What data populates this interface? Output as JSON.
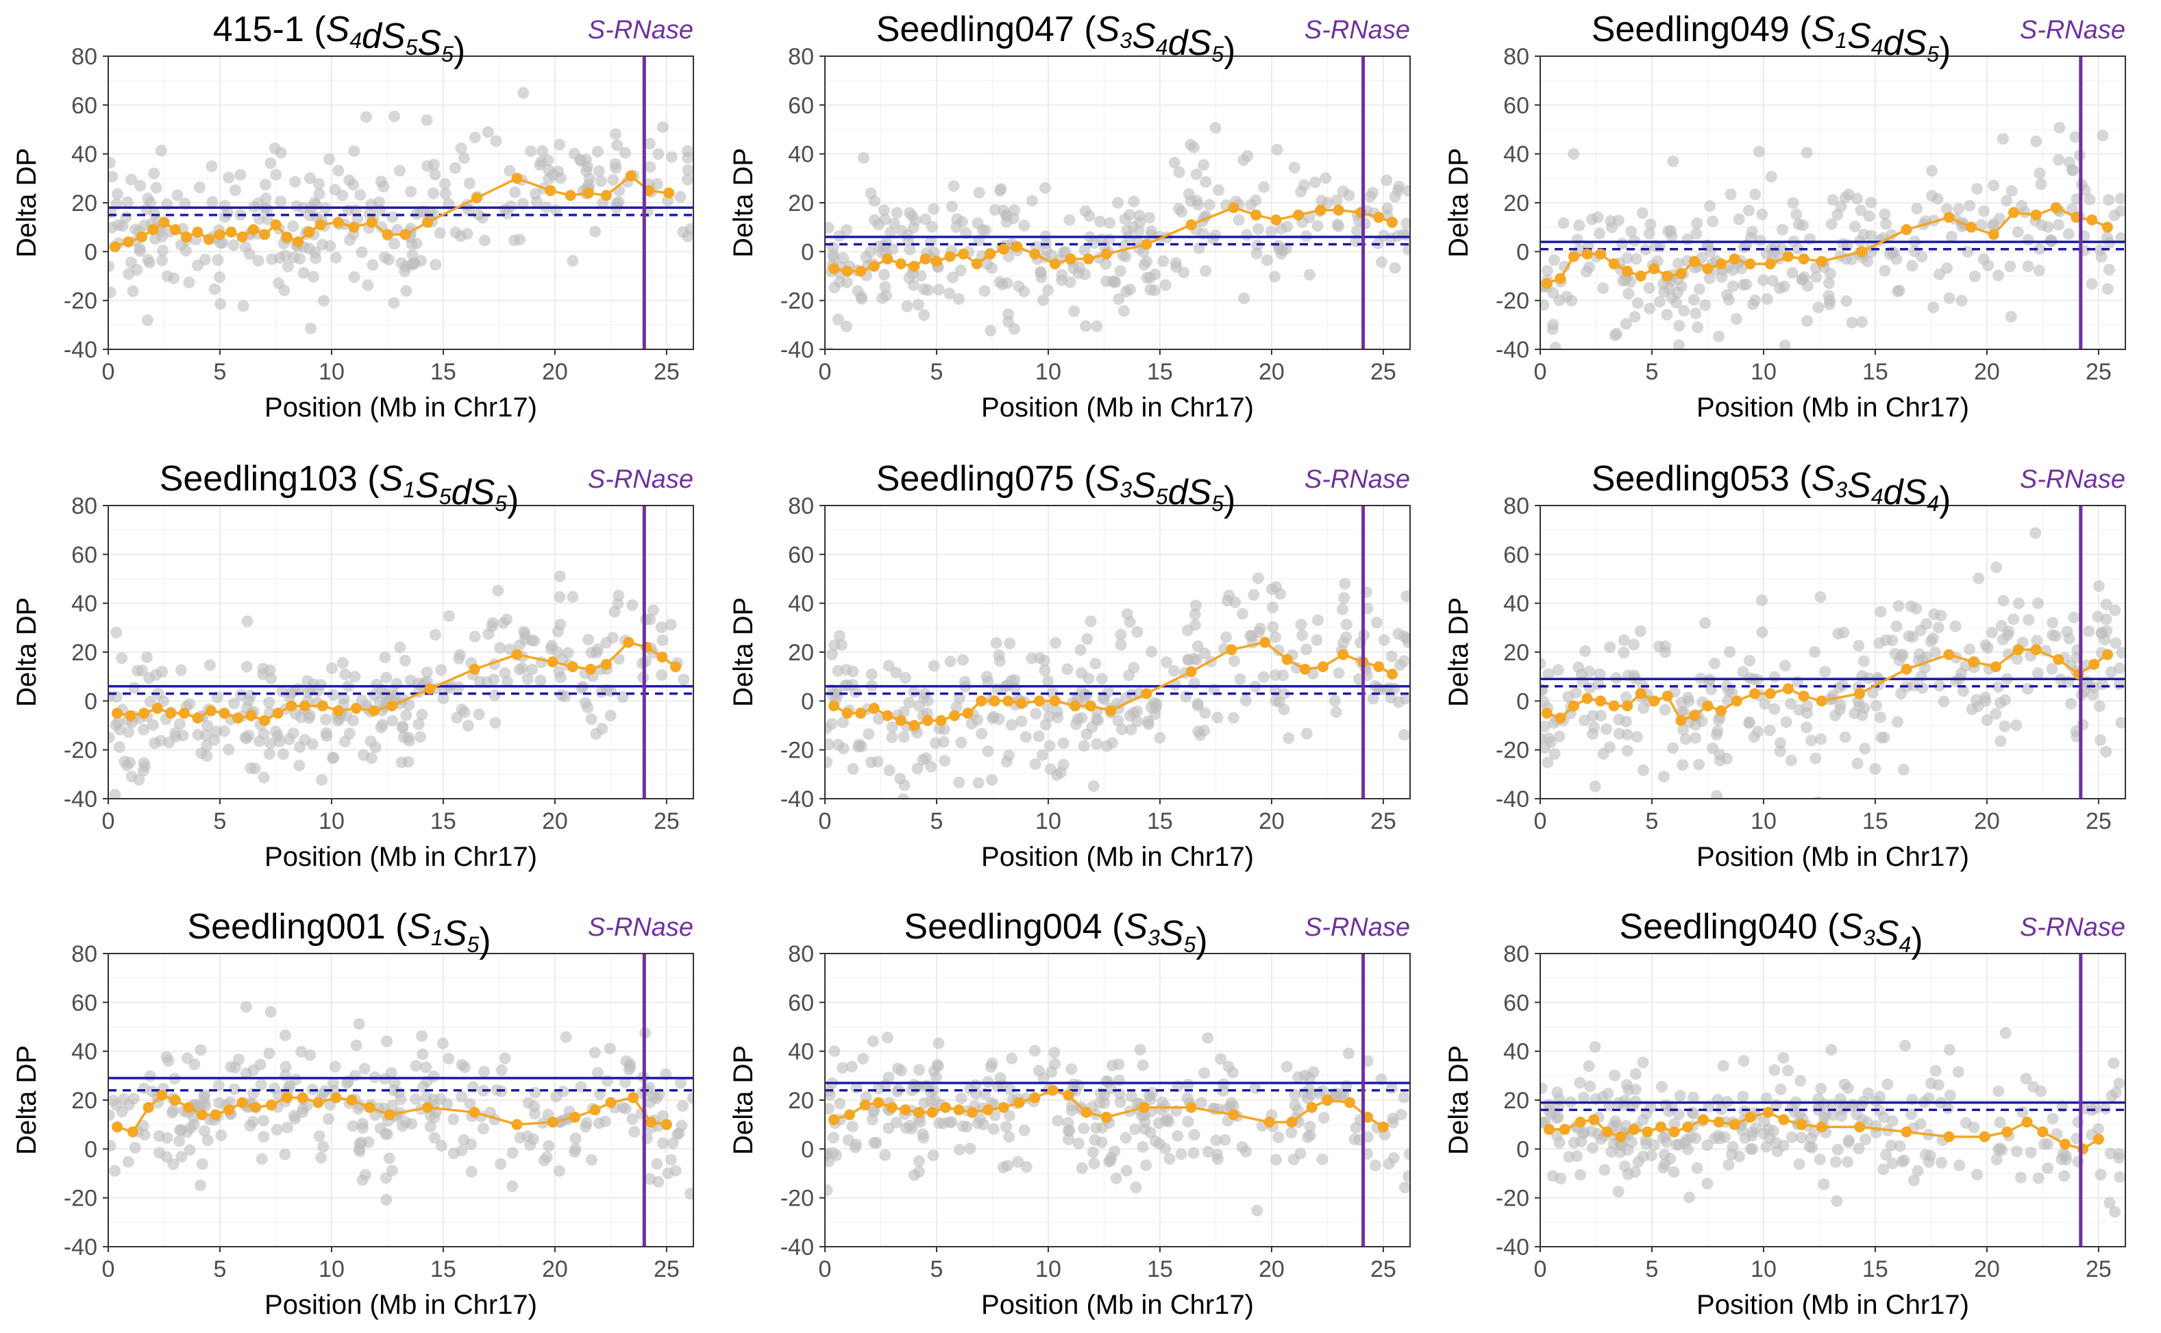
{
  "figure": {
    "marker_label": "S-RNase",
    "colors": {
      "scatter": "#bdbdbd",
      "mean_line": "#f5a623",
      "threshold": "#1a1aa6",
      "marker": "#7030a0",
      "grid": "#ebebeb"
    }
  },
  "chart_data": [
    {
      "type": "scatter",
      "title": "415-1",
      "genotype": [
        {
          "t": "S",
          "s": "4"
        },
        {
          "t": "dS",
          "s": "5"
        },
        {
          "t": "S",
          "s": "5"
        }
      ],
      "xlabel": "Position (Mb in Chr17)",
      "ylabel": "Delta DP",
      "xlim": [
        0,
        26.2
      ],
      "ylim": [
        -40,
        80
      ],
      "xticks": [
        0,
        5,
        10,
        15,
        20,
        25
      ],
      "yticks": [
        -40,
        -20,
        0,
        20,
        40,
        60,
        80
      ],
      "threshold_solid": 18,
      "threshold_dashed": 15,
      "marker_x": 24.0,
      "mean_series": {
        "x": [
          0.3,
          0.9,
          1.5,
          2.0,
          2.5,
          3.0,
          3.5,
          4.0,
          4.5,
          5.0,
          5.5,
          6.0,
          6.5,
          7.0,
          7.5,
          8.0,
          8.5,
          9.0,
          9.5,
          10.3,
          11.0,
          11.8,
          12.5,
          13.3,
          14.3,
          16.5,
          18.3,
          19.8,
          20.7,
          21.5,
          22.3,
          23.4,
          24.2,
          25.1
        ],
        "y": [
          2,
          4,
          6,
          9,
          12,
          9,
          6,
          8,
          5,
          7,
          8,
          6,
          9,
          7,
          11,
          6,
          4,
          8,
          11,
          12,
          10,
          12,
          7,
          7,
          12,
          22,
          30,
          25,
          23,
          24,
          23,
          31,
          25,
          24
        ]
      },
      "scatter_seed": 11,
      "scatter_n": 300,
      "scatter_sd": 14,
      "scatter_extra": 10
    },
    {
      "type": "scatter",
      "title": "Seedling047",
      "genotype": [
        {
          "t": "S",
          "s": "3"
        },
        {
          "t": "S",
          "s": "4"
        },
        {
          "t": "dS",
          "s": "5"
        }
      ],
      "xlabel": "Position (Mb in Chr17)",
      "ylabel": "Delta DP",
      "xlim": [
        0,
        26.2
      ],
      "ylim": [
        -40,
        80
      ],
      "xticks": [
        0,
        5,
        10,
        15,
        20,
        25
      ],
      "yticks": [
        -40,
        -20,
        0,
        20,
        40,
        60,
        80
      ],
      "threshold_solid": 6,
      "threshold_dashed": 3,
      "marker_x": 24.1,
      "mean_series": {
        "x": [
          0.4,
          1.0,
          1.6,
          2.2,
          2.8,
          3.4,
          4.0,
          4.5,
          5.0,
          5.6,
          6.2,
          6.8,
          7.4,
          8.0,
          8.6,
          9.4,
          10.3,
          11.0,
          11.8,
          12.6,
          14.4,
          16.4,
          18.3,
          19.3,
          20.2,
          21.2,
          22.2,
          23.0,
          24.0,
          24.8,
          25.4
        ],
        "y": [
          -7,
          -8,
          -8,
          -6,
          -3,
          -5,
          -6,
          -3,
          -4,
          -2,
          -1,
          -5,
          -1,
          1,
          2,
          -1,
          -5,
          -3,
          -3,
          -1,
          3,
          11,
          18,
          15,
          13,
          15,
          17,
          17,
          16,
          14,
          12
        ]
      },
      "scatter_seed": 23,
      "scatter_n": 300,
      "scatter_sd": 14,
      "scatter_extra": 0
    },
    {
      "type": "scatter",
      "title": "Seedling049",
      "genotype": [
        {
          "t": "S",
          "s": "1"
        },
        {
          "t": "S",
          "s": "4"
        },
        {
          "t": "dS",
          "s": "5"
        }
      ],
      "xlabel": "Position (Mb in Chr17)",
      "ylabel": "Delta DP",
      "xlim": [
        0,
        26.2
      ],
      "ylim": [
        -40,
        80
      ],
      "xticks": [
        0,
        5,
        10,
        15,
        20,
        25
      ],
      "yticks": [
        -40,
        -20,
        0,
        20,
        40,
        60,
        80
      ],
      "threshold_solid": 4,
      "threshold_dashed": 1,
      "marker_x": 24.2,
      "mean_series": {
        "x": [
          0.3,
          0.9,
          1.5,
          2.1,
          2.7,
          3.3,
          3.9,
          4.5,
          5.1,
          5.7,
          6.3,
          6.9,
          7.5,
          8.1,
          8.7,
          9.4,
          10.3,
          11.1,
          11.8,
          12.6,
          14.4,
          16.4,
          18.3,
          19.3,
          20.3,
          21.2,
          22.2,
          23.1,
          24.0,
          24.7,
          25.4
        ],
        "y": [
          -13,
          -11,
          -2,
          -1,
          -1,
          -5,
          -8,
          -10,
          -7,
          -10,
          -9,
          -4,
          -7,
          -5,
          -3,
          -5,
          -5,
          -2,
          -3,
          -4,
          0,
          9,
          14,
          10,
          7,
          16,
          15,
          18,
          14,
          13,
          10
        ]
      },
      "scatter_seed": 37,
      "scatter_n": 300,
      "scatter_sd": 15,
      "scatter_extra": 0
    },
    {
      "type": "scatter",
      "title": "Seedling103",
      "genotype": [
        {
          "t": "S",
          "s": "1"
        },
        {
          "t": "S",
          "s": "5"
        },
        {
          "t": "dS",
          "s": "5"
        }
      ],
      "xlabel": "Position (Mb in Chr17)",
      "ylabel": "Delta DP",
      "xlim": [
        0,
        26.2
      ],
      "ylim": [
        -40,
        80
      ],
      "xticks": [
        0,
        5,
        10,
        15,
        20,
        25
      ],
      "yticks": [
        -40,
        -20,
        0,
        20,
        40,
        60,
        80
      ],
      "threshold_solid": 6,
      "threshold_dashed": 3,
      "marker_x": 24.0,
      "mean_series": {
        "x": [
          0.4,
          1.0,
          1.6,
          2.2,
          2.8,
          3.4,
          4.0,
          4.6,
          5.2,
          5.8,
          6.4,
          7.0,
          7.6,
          8.2,
          8.8,
          9.6,
          10.3,
          11.1,
          11.9,
          12.7,
          14.4,
          16.4,
          18.3,
          19.9,
          20.8,
          21.6,
          22.3,
          23.3,
          24.1,
          24.8,
          25.4
        ],
        "y": [
          -5,
          -6,
          -5,
          -3,
          -5,
          -5,
          -7,
          -4,
          -5,
          -7,
          -6,
          -8,
          -5,
          -2,
          -2,
          -2,
          -4,
          -3,
          -4,
          -2,
          5,
          13,
          19,
          16,
          14,
          13,
          15,
          24,
          22,
          18,
          14
        ]
      },
      "scatter_seed": 41,
      "scatter_n": 300,
      "scatter_sd": 14,
      "scatter_extra": 0
    },
    {
      "type": "scatter",
      "title": "Seedling075",
      "genotype": [
        {
          "t": "S",
          "s": "3"
        },
        {
          "t": "S",
          "s": "5"
        },
        {
          "t": "dS",
          "s": "5"
        }
      ],
      "xlabel": "Position (Mb in Chr17)",
      "ylabel": "Delta DP",
      "xlim": [
        0,
        26.2
      ],
      "ylim": [
        -40,
        80
      ],
      "xticks": [
        0,
        5,
        10,
        15,
        20,
        25
      ],
      "yticks": [
        -40,
        -20,
        0,
        20,
        40,
        60,
        80
      ],
      "threshold_solid": 6,
      "threshold_dashed": 3,
      "marker_x": 24.1,
      "mean_series": {
        "x": [
          0.4,
          1.0,
          1.6,
          2.2,
          2.8,
          3.4,
          4.0,
          4.6,
          5.2,
          5.8,
          6.4,
          7.0,
          7.6,
          8.2,
          8.8,
          9.6,
          10.3,
          11.2,
          11.9,
          12.8,
          14.4,
          16.4,
          18.2,
          19.7,
          20.7,
          21.5,
          22.3,
          23.2,
          24.1,
          24.8,
          25.4
        ],
        "y": [
          -2,
          -5,
          -5,
          -3,
          -6,
          -8,
          -10,
          -8,
          -8,
          -6,
          -5,
          0,
          0,
          0,
          -1,
          0,
          0,
          -2,
          -2,
          -4,
          3,
          12,
          21,
          24,
          17,
          13,
          14,
          19,
          16,
          14,
          11
        ]
      },
      "scatter_seed": 53,
      "scatter_n": 300,
      "scatter_sd": 15,
      "scatter_extra": 0
    },
    {
      "type": "scatter",
      "title": "Seedling053",
      "genotype": [
        {
          "t": "S",
          "s": "3"
        },
        {
          "t": "S",
          "s": "4"
        },
        {
          "t": "dS",
          "s": "4"
        }
      ],
      "xlabel": "Position (Mb in Chr17)",
      "ylabel": "Delta DP",
      "xlim": [
        0,
        26.2
      ],
      "ylim": [
        -40,
        80
      ],
      "xticks": [
        0,
        5,
        10,
        15,
        20,
        25
      ],
      "yticks": [
        -40,
        -20,
        0,
        20,
        40,
        60,
        80
      ],
      "threshold_solid": 9,
      "threshold_dashed": 6,
      "marker_x": 24.2,
      "mean_series": {
        "x": [
          0.3,
          0.9,
          1.5,
          2.1,
          2.7,
          3.3,
          3.9,
          4.5,
          5.1,
          5.7,
          6.3,
          6.9,
          7.5,
          8.1,
          8.8,
          9.6,
          10.3,
          11.1,
          11.8,
          12.6,
          14.3,
          16.4,
          18.3,
          19.4,
          20.4,
          21.4,
          22.2,
          23.2,
          24.1,
          24.8,
          25.4
        ],
        "y": [
          -5,
          -7,
          -2,
          1,
          0,
          -2,
          -2,
          3,
          0,
          2,
          -8,
          -6,
          -2,
          -4,
          0,
          3,
          3,
          5,
          2,
          0,
          3,
          13,
          19,
          16,
          14,
          21,
          21,
          17,
          11,
          15,
          19
        ]
      },
      "scatter_seed": 67,
      "scatter_n": 300,
      "scatter_sd": 15,
      "scatter_extra": 0
    },
    {
      "type": "scatter",
      "title": "Seedling001",
      "genotype": [
        {
          "t": "S",
          "s": "1"
        },
        {
          "t": "S",
          "s": "5"
        }
      ],
      "xlabel": "Position (Mb in Chr17)",
      "ylabel": "Delta DP",
      "xlim": [
        0,
        26.2
      ],
      "ylim": [
        -40,
        80
      ],
      "xticks": [
        0,
        5,
        10,
        15,
        20,
        25
      ],
      "yticks": [
        -40,
        -20,
        0,
        20,
        40,
        60,
        80
      ],
      "threshold_solid": 29,
      "threshold_dashed": 24,
      "marker_x": 24.0,
      "mean_series": {
        "x": [
          0.4,
          1.1,
          1.8,
          2.4,
          3.0,
          3.6,
          4.2,
          4.8,
          5.4,
          6.0,
          6.6,
          7.3,
          8.0,
          8.7,
          9.4,
          10.2,
          10.9,
          11.7,
          12.6,
          14.3,
          16.4,
          18.3,
          19.9,
          20.9,
          21.8,
          22.5,
          23.5,
          24.3,
          25.0
        ],
        "y": [
          9,
          7,
          17,
          22,
          20,
          17,
          14,
          14,
          16,
          19,
          17,
          18,
          21,
          21,
          19,
          21,
          20,
          17,
          14,
          17,
          15,
          10,
          11,
          13,
          16,
          19,
          21,
          11,
          10
        ]
      },
      "scatter_seed": 79,
      "scatter_n": 300,
      "scatter_sd": 13,
      "scatter_extra": 0
    },
    {
      "type": "scatter",
      "title": "Seedling004",
      "genotype": [
        {
          "t": "S",
          "s": "3"
        },
        {
          "t": "S",
          "s": "5"
        }
      ],
      "xlabel": "Position (Mb in Chr17)",
      "ylabel": "Delta DP",
      "xlim": [
        0,
        26.2
      ],
      "ylim": [
        -40,
        80
      ],
      "xticks": [
        0,
        5,
        10,
        15,
        20,
        25
      ],
      "yticks": [
        -40,
        -20,
        0,
        20,
        40,
        60,
        80
      ],
      "threshold_solid": 27,
      "threshold_dashed": 24,
      "marker_x": 24.1,
      "mean_series": {
        "x": [
          0.4,
          1.1,
          1.8,
          2.4,
          3.0,
          3.6,
          4.2,
          4.8,
          5.4,
          6.0,
          6.6,
          7.3,
          8.0,
          8.7,
          9.4,
          10.2,
          10.9,
          11.7,
          12.6,
          14.3,
          16.4,
          18.3,
          19.9,
          20.9,
          21.8,
          22.5,
          23.5,
          24.3,
          25.0
        ],
        "y": [
          12,
          14,
          18,
          19,
          17,
          16,
          15,
          15,
          17,
          16,
          15,
          16,
          17,
          19,
          21,
          24,
          22,
          15,
          13,
          17,
          17,
          14,
          11,
          11,
          17,
          20,
          19,
          13,
          9
        ]
      },
      "scatter_seed": 83,
      "scatter_n": 300,
      "scatter_sd": 13,
      "scatter_extra": 0
    },
    {
      "type": "scatter",
      "title": "Seedling040",
      "genotype": [
        {
          "t": "S",
          "s": "3"
        },
        {
          "t": "S",
          "s": "4"
        }
      ],
      "xlabel": "Position (Mb in Chr17)",
      "ylabel": "Delta DP",
      "xlim": [
        0,
        26.2
      ],
      "ylim": [
        -40,
        80
      ],
      "xticks": [
        0,
        5,
        10,
        15,
        20,
        25
      ],
      "yticks": [
        -40,
        -20,
        0,
        20,
        40,
        60,
        80
      ],
      "threshold_solid": 19,
      "threshold_dashed": 16,
      "marker_x": 24.2,
      "mean_series": {
        "x": [
          0.4,
          1.1,
          1.8,
          2.4,
          3.0,
          3.6,
          4.2,
          4.8,
          5.4,
          6.0,
          6.6,
          7.3,
          8.0,
          8.7,
          9.4,
          10.2,
          10.9,
          11.7,
          12.6,
          14.3,
          16.4,
          18.3,
          19.9,
          20.9,
          21.8,
          22.5,
          23.5,
          24.3,
          25.0
        ],
        "y": [
          8,
          8,
          11,
          12,
          7,
          5,
          8,
          7,
          9,
          7,
          9,
          12,
          11,
          10,
          13,
          15,
          12,
          10,
          9,
          9,
          7,
          5,
          5,
          7,
          11,
          7,
          2,
          0,
          4
        ]
      },
      "scatter_seed": 97,
      "scatter_n": 300,
      "scatter_sd": 13,
      "scatter_extra": 0
    }
  ]
}
